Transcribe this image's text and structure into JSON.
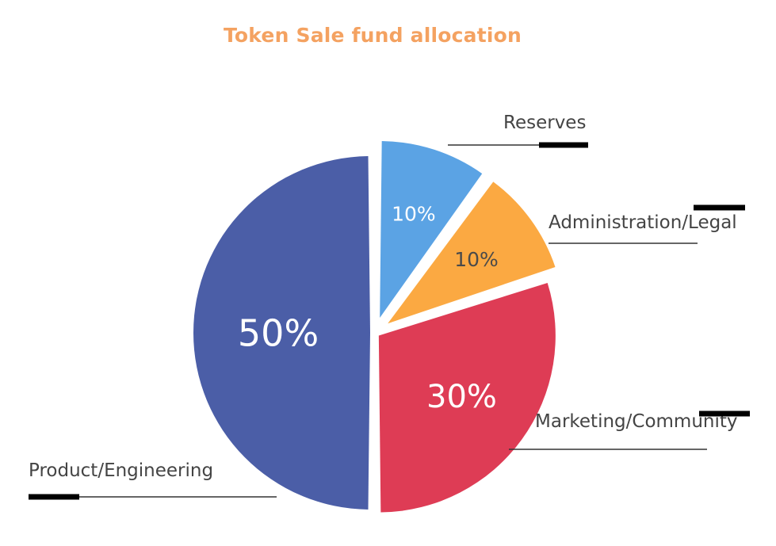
{
  "chart_data": {
    "type": "pie",
    "title": "Token Sale fund allocation",
    "slices": [
      {
        "name": "Product/Engineering",
        "value": 50,
        "label": "50%",
        "color": "#4b5ea7",
        "exploded": false
      },
      {
        "name": "Marketing/Community",
        "value": 30,
        "label": "30%",
        "color": "#de3c55",
        "exploded": false
      },
      {
        "name": "Administration/Legal",
        "value": 10,
        "label": "10%",
        "color": "#fba942",
        "exploded": true
      },
      {
        "name": "Reserves",
        "value": 10,
        "label": "10%",
        "color": "#5ba3e4",
        "exploded": true
      }
    ],
    "legend": "leader-lines"
  },
  "colors": {
    "title": "#f4a261",
    "text": "#444444",
    "leader_line": "#333333"
  }
}
